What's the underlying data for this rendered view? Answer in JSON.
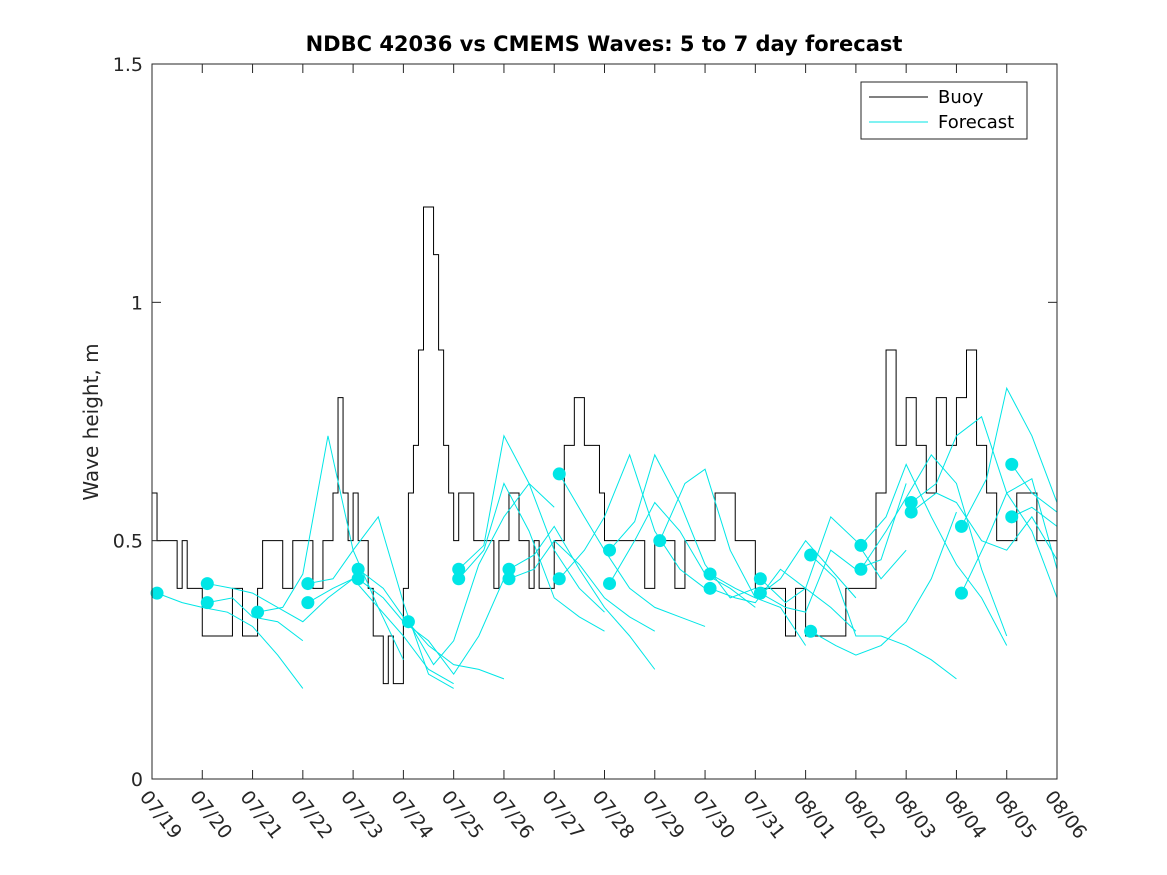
{
  "chart_data": {
    "type": "line",
    "title": "NDBC 42036 vs CMEMS Waves: 5 to 7 day forecast",
    "xlabel": "",
    "ylabel": "Wave height, m",
    "xlim": [
      "07/19",
      "08/06"
    ],
    "ylim": [
      0,
      1.5
    ],
    "x_ticks": [
      "07/19",
      "07/20",
      "07/21",
      "07/22",
      "07/23",
      "07/24",
      "07/25",
      "07/26",
      "07/27",
      "07/28",
      "07/29",
      "07/30",
      "07/31",
      "08/01",
      "08/02",
      "08/03",
      "08/04",
      "08/05",
      "08/06"
    ],
    "y_ticks": [
      0,
      0.5,
      1,
      1.5
    ],
    "y_tick_labels": [
      "0",
      "0.5",
      "1",
      "1.5"
    ],
    "legend": {
      "placement": "top-right",
      "entries": [
        {
          "name": "Buoy",
          "color": "#000000"
        },
        {
          "name": "Forecast",
          "color": "#00e6e6"
        }
      ]
    },
    "grid": false,
    "series": [
      {
        "name": "Buoy",
        "color": "#000000",
        "style": "step",
        "x_days": [
          0,
          0.1,
          0.3,
          0.5,
          0.6,
          0.7,
          0.9,
          1.0,
          1.3,
          1.6,
          1.8,
          2.0,
          2.1,
          2.2,
          2.4,
          2.6,
          2.8,
          3.0,
          3.2,
          3.4,
          3.6,
          3.7,
          3.8,
          3.9,
          4.0,
          4.1,
          4.3,
          4.4,
          4.5,
          4.6,
          4.7,
          4.8,
          5.0,
          5.1,
          5.2,
          5.3,
          5.4,
          5.5,
          5.6,
          5.7,
          5.8,
          5.9,
          6.0,
          6.1,
          6.2,
          6.4,
          6.6,
          6.8,
          6.9,
          7.0,
          7.1,
          7.3,
          7.5,
          7.6,
          7.7,
          7.9,
          8.0,
          8.2,
          8.4,
          8.6,
          8.8,
          8.9,
          9.0,
          9.2,
          9.4,
          9.6,
          9.8,
          10.0,
          10.2,
          10.4,
          10.6,
          10.8,
          11.0,
          11.2,
          11.4,
          11.6,
          11.8,
          12.0,
          12.2,
          12.4,
          12.6,
          12.8,
          13.0,
          13.2,
          13.4,
          13.6,
          13.8,
          14.0,
          14.2,
          14.4,
          14.6,
          14.8,
          15.0,
          15.2,
          15.4,
          15.6,
          15.8,
          16.0,
          16.2,
          16.4,
          16.6,
          16.8,
          17.0,
          17.2,
          17.4,
          17.6,
          17.8,
          18.0
        ],
        "values": [
          0.6,
          0.5,
          0.5,
          0.4,
          0.5,
          0.4,
          0.4,
          0.3,
          0.3,
          0.4,
          0.3,
          0.3,
          0.4,
          0.5,
          0.5,
          0.4,
          0.5,
          0.5,
          0.4,
          0.5,
          0.6,
          0.8,
          0.6,
          0.5,
          0.6,
          0.5,
          0.4,
          0.3,
          0.3,
          0.2,
          0.3,
          0.2,
          0.4,
          0.6,
          0.7,
          0.9,
          1.2,
          1.2,
          1.1,
          0.9,
          0.7,
          0.6,
          0.5,
          0.6,
          0.6,
          0.5,
          0.5,
          0.4,
          0.5,
          0.5,
          0.6,
          0.5,
          0.4,
          0.5,
          0.4,
          0.4,
          0.5,
          0.7,
          0.8,
          0.7,
          0.7,
          0.6,
          0.5,
          0.5,
          0.5,
          0.5,
          0.4,
          0.5,
          0.5,
          0.4,
          0.5,
          0.5,
          0.5,
          0.6,
          0.6,
          0.5,
          0.5,
          0.4,
          0.4,
          0.4,
          0.3,
          0.4,
          0.3,
          0.3,
          0.3,
          0.3,
          0.4,
          0.4,
          0.4,
          0.6,
          0.9,
          0.7,
          0.8,
          0.7,
          0.6,
          0.8,
          0.7,
          0.8,
          0.9,
          0.7,
          0.6,
          0.5,
          0.5,
          0.6,
          0.6,
          0.5,
          0.5,
          0.5
        ]
      },
      {
        "name": "Forecast",
        "color": "#00e6e6",
        "style": "multi-run",
        "runs": [
          {
            "x_days": [
              0.1,
              0.6,
              1.0,
              1.5,
              2.0,
              2.5,
              3.0
            ],
            "values": [
              0.39,
              0.37,
              0.36,
              0.35,
              0.32,
              0.26,
              0.19
            ]
          },
          {
            "x_days": [
              1.1,
              1.6,
              2.0,
              2.5,
              3.0,
              3.5,
              4.0
            ],
            "values": [
              0.41,
              0.4,
              0.39,
              0.36,
              0.33,
              0.38,
              0.42
            ]
          },
          {
            "x_days": [
              1.1,
              1.6,
              2.0,
              2.5,
              3.0
            ],
            "values": [
              0.37,
              0.38,
              0.34,
              0.33,
              0.29
            ]
          },
          {
            "x_days": [
              2.1,
              2.6,
              3.0,
              3.5,
              4.0,
              4.5,
              5.0
            ],
            "values": [
              0.35,
              0.36,
              0.43,
              0.72,
              0.48,
              0.36,
              0.25
            ]
          },
          {
            "x_days": [
              3.1,
              3.6,
              4.0,
              4.5,
              5.0,
              5.5,
              6.0
            ],
            "values": [
              0.41,
              0.42,
              0.48,
              0.55,
              0.37,
              0.22,
              0.19
            ]
          },
          {
            "x_days": [
              3.1,
              3.6,
              4.0,
              4.5,
              5.0,
              5.5,
              6.0
            ],
            "values": [
              0.37,
              0.4,
              0.42,
              0.36,
              0.3,
              0.23,
              0.2
            ]
          },
          {
            "x_days": [
              4.1,
              4.6,
              5.0,
              5.5,
              6.0,
              6.5,
              7.0
            ],
            "values": [
              0.44,
              0.4,
              0.34,
              0.28,
              0.24,
              0.23,
              0.21
            ]
          },
          {
            "x_days": [
              4.1,
              4.6,
              5.0,
              5.5,
              6.0,
              6.5,
              7.0
            ],
            "values": [
              0.42,
              0.38,
              0.33,
              0.29,
              0.22,
              0.3,
              0.42
            ]
          },
          {
            "x_days": [
              5.1,
              5.6,
              6.0,
              6.5,
              7.0,
              7.5,
              8.0
            ],
            "values": [
              0.33,
              0.24,
              0.29,
              0.45,
              0.55,
              0.62,
              0.57
            ]
          },
          {
            "x_days": [
              6.1,
              6.6,
              7.0,
              7.5,
              8.0,
              8.5,
              9.0
            ],
            "values": [
              0.44,
              0.49,
              0.72,
              0.62,
              0.48,
              0.4,
              0.35
            ]
          },
          {
            "x_days": [
              6.1,
              6.6,
              7.0,
              7.5,
              8.0,
              8.5,
              9.0
            ],
            "values": [
              0.42,
              0.48,
              0.62,
              0.52,
              0.38,
              0.34,
              0.31
            ]
          },
          {
            "x_days": [
              7.1,
              7.6,
              8.0,
              8.5,
              9.0,
              9.5,
              10.0
            ],
            "values": [
              0.44,
              0.47,
              0.53,
              0.44,
              0.36,
              0.3,
              0.23
            ]
          },
          {
            "x_days": [
              7.1,
              7.6,
              8.0,
              8.5,
              9.0,
              9.5,
              10.0
            ],
            "values": [
              0.42,
              0.44,
              0.5,
              0.45,
              0.38,
              0.34,
              0.31
            ]
          },
          {
            "x_days": [
              8.1,
              8.6,
              9.0,
              9.5,
              10.0,
              10.5,
              11.0
            ],
            "values": [
              0.64,
              0.55,
              0.48,
              0.4,
              0.36,
              0.34,
              0.32
            ]
          },
          {
            "x_days": [
              8.1,
              8.6,
              9.0,
              9.5,
              10.0,
              10.5,
              11.0
            ],
            "values": [
              0.42,
              0.48,
              0.55,
              0.68,
              0.52,
              0.44,
              0.4
            ]
          },
          {
            "x_days": [
              9.1,
              9.6,
              10.0,
              10.5,
              11.0,
              11.5,
              12.0
            ],
            "values": [
              0.48,
              0.54,
              0.68,
              0.58,
              0.45,
              0.38,
              0.4
            ]
          },
          {
            "x_days": [
              9.1,
              9.6,
              10.0,
              10.5,
              11.0,
              11.5,
              12.0
            ],
            "values": [
              0.41,
              0.5,
              0.58,
              0.52,
              0.43,
              0.4,
              0.36
            ]
          },
          {
            "x_days": [
              10.1,
              10.6,
              11.0,
              11.5,
              12.0,
              12.5,
              13.0
            ],
            "values": [
              0.5,
              0.62,
              0.65,
              0.48,
              0.38,
              0.36,
              0.28
            ]
          },
          {
            "x_days": [
              11.1,
              11.6,
              12.0,
              12.5,
              13.0,
              13.5,
              14.0
            ],
            "values": [
              0.43,
              0.4,
              0.38,
              0.42,
              0.5,
              0.44,
              0.38
            ]
          },
          {
            "x_days": [
              11.1,
              11.6,
              12.0,
              12.5,
              13.0,
              13.5,
              14.0
            ],
            "values": [
              0.4,
              0.38,
              0.37,
              0.44,
              0.4,
              0.36,
              0.31
            ]
          },
          {
            "x_days": [
              12.1,
              12.6,
              13.0,
              13.5,
              14.0,
              14.5,
              15.0
            ],
            "values": [
              0.42,
              0.37,
              0.4,
              0.55,
              0.5,
              0.42,
              0.48
            ]
          },
          {
            "x_days": [
              12.1,
              12.6,
              13.0,
              13.5,
              14.0,
              14.5,
              15.0
            ],
            "values": [
              0.39,
              0.36,
              0.35,
              0.48,
              0.44,
              0.46,
              0.62
            ]
          },
          {
            "x_days": [
              13.1,
              13.6,
              14.0,
              14.5,
              15.0,
              15.5,
              16.0
            ],
            "values": [
              0.47,
              0.42,
              0.3,
              0.3,
              0.28,
              0.25,
              0.21
            ]
          },
          {
            "x_days": [
              13.1,
              13.6,
              14.0,
              14.5,
              15.0,
              15.5,
              16.0
            ],
            "values": [
              0.31,
              0.28,
              0.26,
              0.28,
              0.33,
              0.42,
              0.56
            ]
          },
          {
            "x_days": [
              14.1,
              14.6,
              15.0,
              15.5,
              16.0,
              16.5,
              17.0
            ],
            "values": [
              0.49,
              0.55,
              0.66,
              0.55,
              0.45,
              0.38,
              0.28
            ]
          },
          {
            "x_days": [
              14.1,
              14.6,
              15.0,
              15.5,
              16.0,
              16.5,
              17.0
            ],
            "values": [
              0.44,
              0.52,
              0.59,
              0.68,
              0.62,
              0.44,
              0.3
            ]
          },
          {
            "x_days": [
              15.1,
              15.6,
              16.0,
              16.5,
              17.0,
              17.5,
              18.0
            ],
            "values": [
              0.58,
              0.62,
              0.72,
              0.76,
              0.6,
              0.52,
              0.38
            ]
          },
          {
            "x_days": [
              15.1,
              15.6,
              16.0,
              16.5,
              17.0,
              17.5,
              18.0
            ],
            "values": [
              0.56,
              0.6,
              0.58,
              0.5,
              0.48,
              0.55,
              0.46
            ]
          },
          {
            "x_days": [
              16.1,
              16.6,
              17.0,
              17.5,
              18.0
            ],
            "values": [
              0.53,
              0.63,
              0.82,
              0.72,
              0.58
            ]
          },
          {
            "x_days": [
              16.1,
              16.6,
              17.0,
              17.5,
              18.0
            ],
            "values": [
              0.39,
              0.5,
              0.6,
              0.63,
              0.44
            ]
          },
          {
            "x_days": [
              17.1,
              17.5,
              18.0
            ],
            "values": [
              0.66,
              0.6,
              0.56
            ]
          },
          {
            "x_days": [
              17.1,
              17.5,
              18.0
            ],
            "values": [
              0.55,
              0.57,
              0.53
            ]
          }
        ]
      }
    ]
  }
}
